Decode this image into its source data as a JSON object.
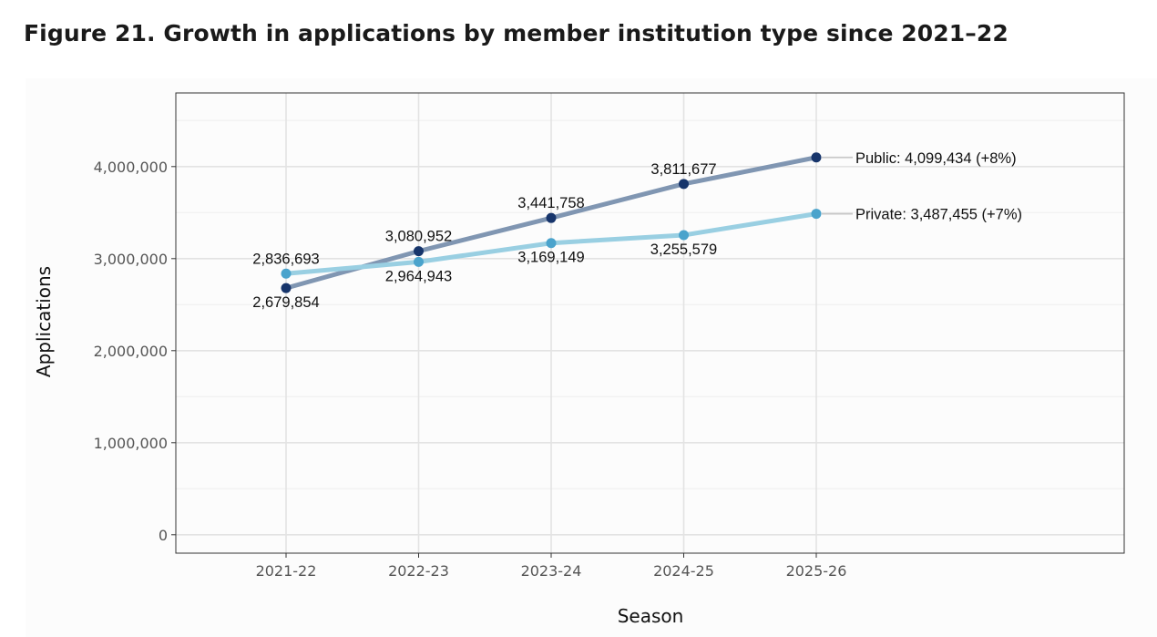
{
  "figure": {
    "title": "Figure 21. Growth in applications by member institution type since 2021–22"
  },
  "chart_data": {
    "type": "line",
    "xlabel": "Season",
    "ylabel": "Applications",
    "categories": [
      "2021-22",
      "2022-23",
      "2023-24",
      "2024-25",
      "2025-26"
    ],
    "ylim": [
      -200000,
      4800000
    ],
    "yticks": [
      0,
      1000000,
      2000000,
      3000000,
      4000000
    ],
    "ytick_labels": [
      "0",
      "1,000,000",
      "2,000,000",
      "3,000,000",
      "4,000,000"
    ],
    "grid": true,
    "series": [
      {
        "name": "Public",
        "values": [
          2679854,
          3080952,
          3441758,
          3811677,
          4099434
        ],
        "labels": [
          "2,679,854",
          "3,080,952",
          "3,441,758",
          "3,811,677",
          null
        ],
        "end_label": "Public: 4,099,434 (+8%)",
        "line_color": "#8096b2",
        "point_color": "#17356b"
      },
      {
        "name": "Private",
        "values": [
          2836693,
          2964943,
          3169149,
          3255579,
          3487455
        ],
        "labels": [
          "2,836,693",
          "2,964,943",
          "3,169,149",
          "3,255,579",
          null
        ],
        "end_label": "Private: 3,487,455 (+7%)",
        "line_color": "#99cfe2",
        "point_color": "#4aa3cc"
      }
    ]
  }
}
